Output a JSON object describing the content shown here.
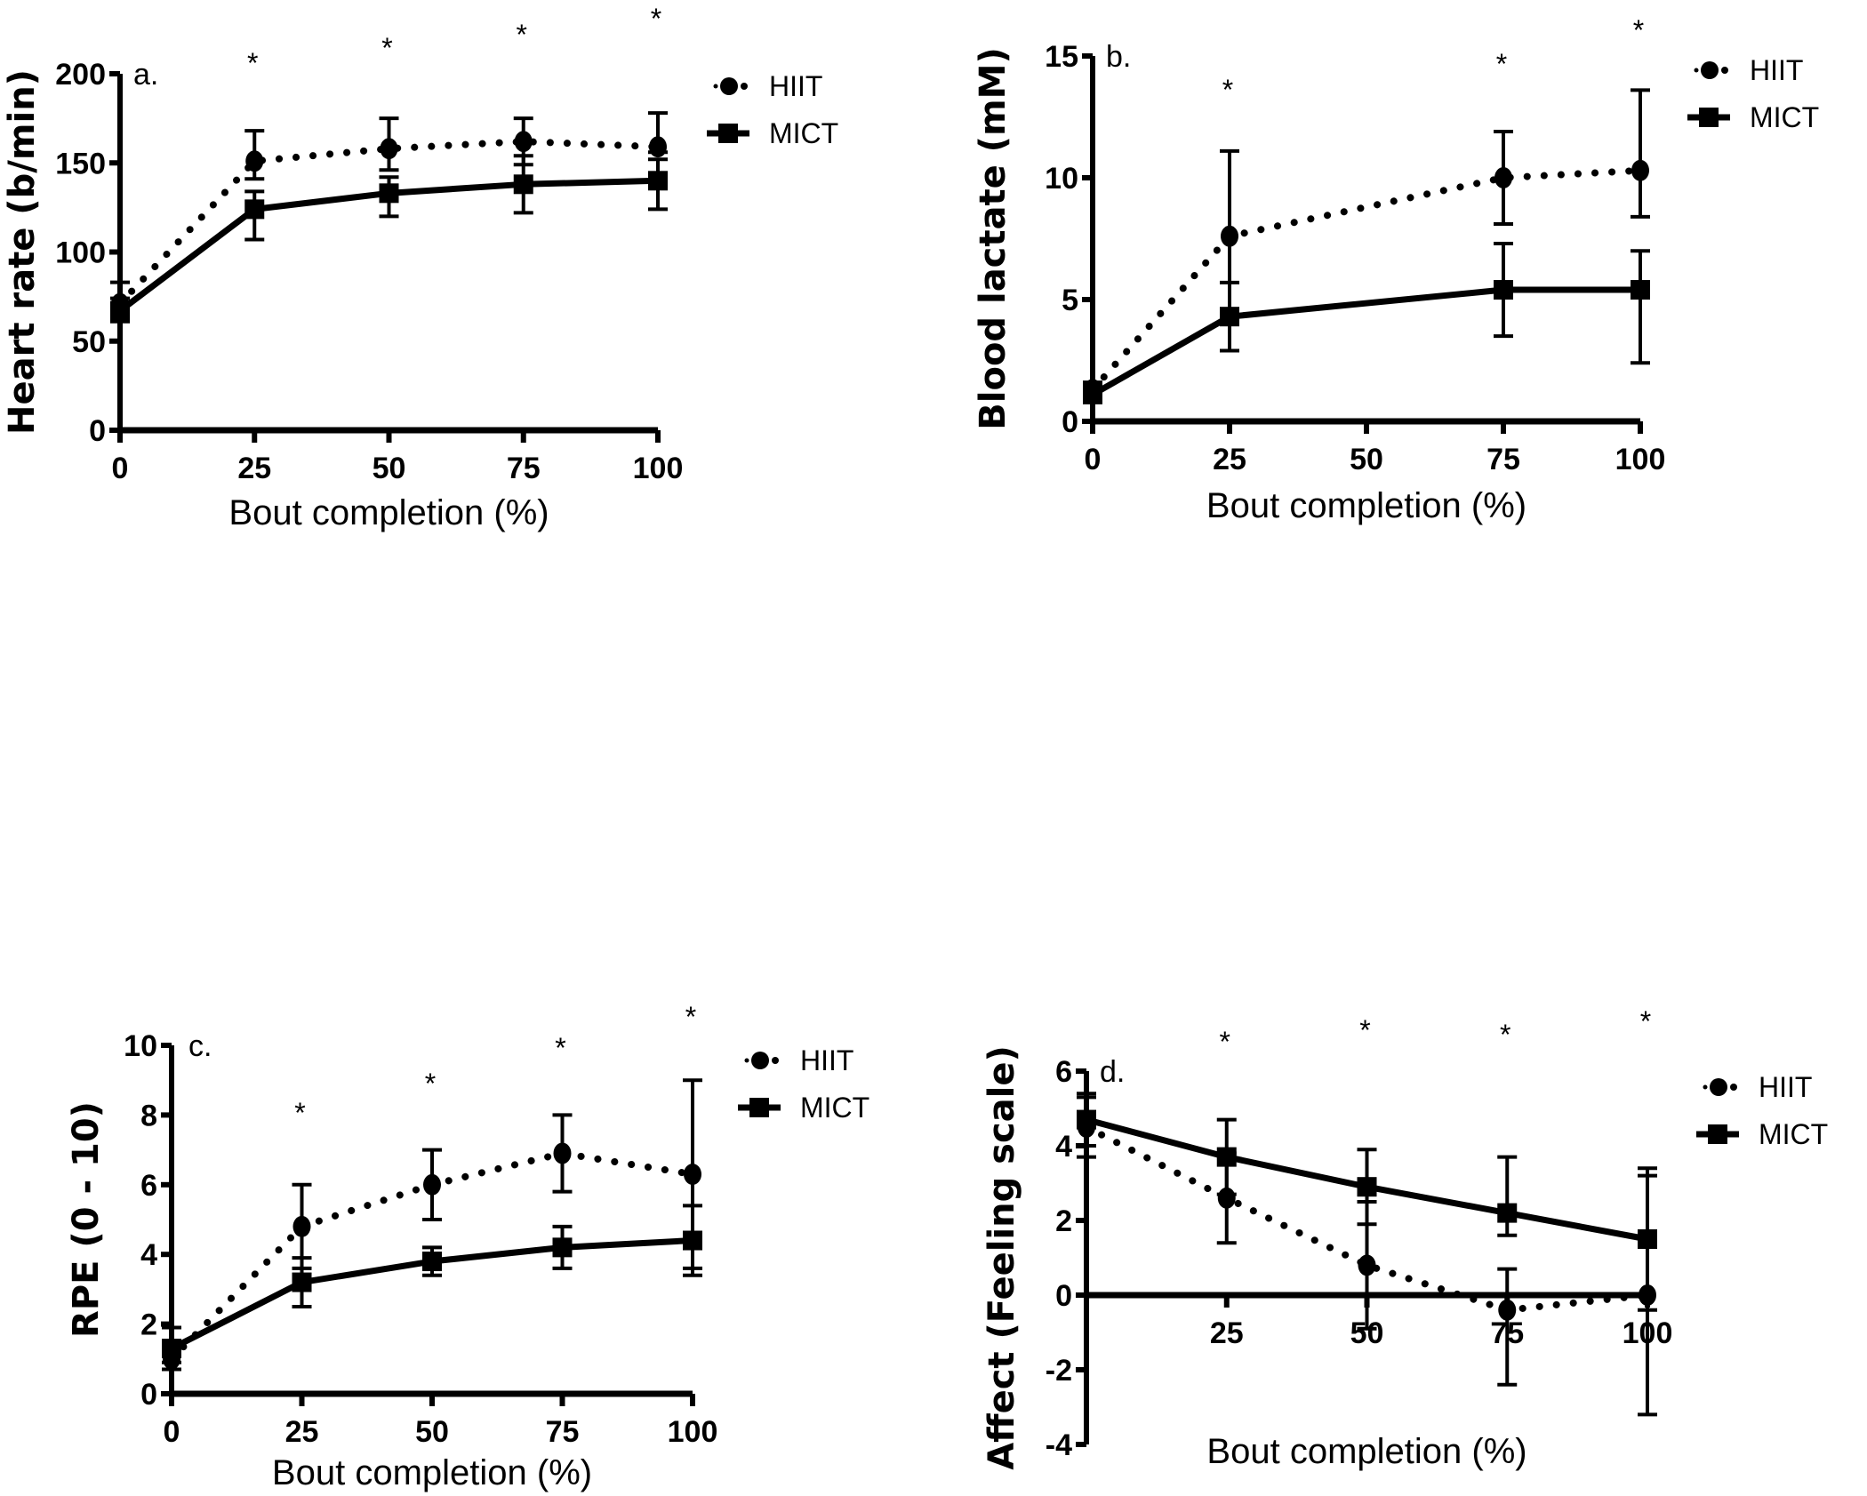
{
  "figure": {
    "legend_labels": {
      "hiit": "HIIT",
      "mict": "MICT"
    }
  },
  "chart_data": [
    {
      "type": "line",
      "panel_label": "a.",
      "title": "",
      "xlabel": "Bout completion (%)",
      "ylabel": "Heart rate (b/min)",
      "x": [
        0,
        25,
        50,
        75,
        100
      ],
      "x_ticks": [
        0,
        25,
        50,
        75,
        100
      ],
      "xlim": [
        0,
        100
      ],
      "y_ticks": [
        0,
        50,
        100,
        150,
        200
      ],
      "ylim": [
        0,
        200
      ],
      "grid": false,
      "legend_position": "right",
      "significance_markers": [
        {
          "x": 25,
          "label": "*"
        },
        {
          "x": 50,
          "label": "*"
        },
        {
          "x": 75,
          "label": "*"
        },
        {
          "x": 100,
          "label": "*"
        }
      ],
      "series": [
        {
          "name": "HIIT",
          "style": "dotted",
          "marker": "circle",
          "values": [
            71,
            151,
            158,
            162,
            159
          ],
          "error_upper": [
            83,
            168,
            175,
            175,
            178
          ],
          "error_lower": [
            66,
            141,
            146,
            149,
            156
          ]
        },
        {
          "name": "MICT",
          "style": "solid",
          "marker": "square",
          "values": [
            67,
            124,
            133,
            138,
            140
          ],
          "error_upper": [
            74,
            134,
            142,
            154,
            152
          ],
          "error_lower": [
            61,
            107,
            120,
            122,
            124
          ]
        }
      ]
    },
    {
      "type": "line",
      "panel_label": "b.",
      "title": "",
      "xlabel": "Bout completion (%)",
      "ylabel": "Blood lactate (mM)",
      "x": [
        0,
        25,
        75,
        100
      ],
      "x_ticks": [
        0,
        25,
        50,
        75,
        100
      ],
      "xlim": [
        0,
        100
      ],
      "y_ticks": [
        0,
        5,
        10,
        15
      ],
      "ylim": [
        0,
        15
      ],
      "grid": false,
      "legend_position": "right",
      "significance_markers": [
        {
          "x": 25,
          "label": "*"
        },
        {
          "x": 75,
          "label": "*"
        },
        {
          "x": 100,
          "label": "*"
        }
      ],
      "series": [
        {
          "name": "HIIT",
          "style": "dotted",
          "marker": "circle",
          "values": [
            1.3,
            7.6,
            10.0,
            10.3
          ],
          "error_upper": [
            1.6,
            11.1,
            11.9,
            13.6
          ],
          "error_lower": [
            1.0,
            4.1,
            8.1,
            8.4
          ]
        },
        {
          "name": "MICT",
          "style": "solid",
          "marker": "square",
          "values": [
            1.1,
            4.3,
            5.4,
            5.4
          ],
          "error_upper": [
            1.5,
            5.7,
            7.3,
            7.0
          ],
          "error_lower": [
            0.8,
            2.9,
            3.5,
            2.4
          ]
        }
      ]
    },
    {
      "type": "line",
      "panel_label": "c.",
      "title": "",
      "xlabel": "Bout completion (%)",
      "ylabel": "RPE (0 - 10)",
      "x": [
        0,
        25,
        50,
        75,
        100
      ],
      "x_ticks": [
        0,
        25,
        50,
        75,
        100
      ],
      "xlim": [
        0,
        100
      ],
      "y_ticks": [
        0,
        2,
        4,
        6,
        8,
        10
      ],
      "ylim": [
        0,
        10
      ],
      "grid": false,
      "legend_position": "right",
      "significance_markers": [
        {
          "x": 25,
          "label": "*"
        },
        {
          "x": 50,
          "label": "*"
        },
        {
          "x": 75,
          "label": "*"
        },
        {
          "x": 100,
          "label": "*"
        }
      ],
      "series": [
        {
          "name": "HIIT",
          "style": "dotted",
          "marker": "circle",
          "values": [
            1.0,
            4.8,
            6.0,
            6.9,
            6.3
          ],
          "error_upper": [
            1.3,
            6.0,
            7.0,
            8.0,
            9.0
          ],
          "error_lower": [
            0.7,
            3.6,
            5.0,
            5.8,
            3.6
          ]
        },
        {
          "name": "MICT",
          "style": "solid",
          "marker": "square",
          "values": [
            1.3,
            3.2,
            3.8,
            4.2,
            4.4
          ],
          "error_upper": [
            1.9,
            3.9,
            4.2,
            4.8,
            5.4
          ],
          "error_lower": [
            0.9,
            2.5,
            3.4,
            3.6,
            3.4
          ]
        }
      ]
    },
    {
      "type": "line",
      "panel_label": "d.",
      "title": "",
      "xlabel": "Bout completion (%)",
      "ylabel": "Affect (Feeling scale)",
      "x": [
        0,
        25,
        50,
        75,
        100
      ],
      "x_ticks": [
        25,
        50,
        75,
        100
      ],
      "xlim": [
        0,
        100
      ],
      "y_ticks": [
        -4,
        -2,
        0,
        2,
        4,
        6
      ],
      "ylim": [
        -4,
        6
      ],
      "grid": false,
      "legend_position": "right",
      "significance_markers": [
        {
          "x": 25,
          "label": "*"
        },
        {
          "x": 50,
          "label": "*"
        },
        {
          "x": 75,
          "label": "*"
        },
        {
          "x": 100,
          "label": "*"
        }
      ],
      "series": [
        {
          "name": "HIIT",
          "style": "dotted",
          "marker": "circle",
          "values": [
            4.5,
            2.6,
            0.8,
            -0.4,
            0.0
          ],
          "error_upper": [
            5.3,
            3.8,
            2.5,
            0.7,
            3.2
          ],
          "error_lower": [
            3.7,
            1.4,
            -0.9,
            -2.4,
            -3.2
          ]
        },
        {
          "name": "MICT",
          "style": "solid",
          "marker": "square",
          "values": [
            4.7,
            3.7,
            2.9,
            2.2,
            1.5
          ],
          "error_upper": [
            5.4,
            4.7,
            3.9,
            3.7,
            3.4
          ],
          "error_lower": [
            4.0,
            2.7,
            1.9,
            1.6,
            -0.4
          ]
        }
      ]
    }
  ]
}
